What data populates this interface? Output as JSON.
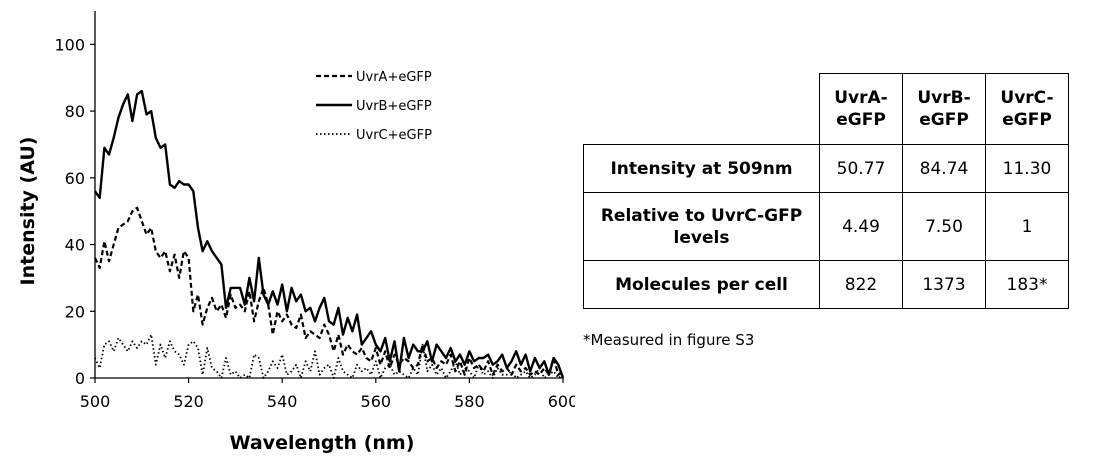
{
  "chart_data": {
    "type": "line",
    "xlabel": "Wavelength (nm)",
    "ylabel": "Intensity (AU)",
    "xlim": [
      500,
      600
    ],
    "ylim": [
      0,
      110
    ],
    "xticks": [
      500,
      520,
      540,
      560,
      580,
      600
    ],
    "yticks": [
      0,
      20,
      40,
      60,
      80,
      100
    ],
    "grid": false,
    "legend_position": "top-right",
    "series": [
      {
        "name": "UvrA+eGFP",
        "style": "dashed",
        "color": "#000000",
        "x": [
          500,
          501,
          502,
          503,
          504,
          505,
          506,
          507,
          508,
          509,
          510,
          511,
          512,
          513,
          514,
          515,
          516,
          517,
          518,
          519,
          520,
          521,
          522,
          523,
          524,
          525,
          526,
          527,
          528,
          529,
          530,
          531,
          532,
          533,
          534,
          535,
          536,
          537,
          538,
          539,
          540,
          541,
          542,
          543,
          544,
          545,
          546,
          547,
          548,
          549,
          550,
          551,
          552,
          553,
          554,
          555,
          556,
          557,
          558,
          559,
          560,
          561,
          562,
          563,
          564,
          565,
          566,
          567,
          568,
          569,
          570,
          571,
          572,
          573,
          574,
          575,
          576,
          577,
          578,
          579,
          580,
          581,
          582,
          583,
          584,
          585,
          586,
          587,
          588,
          589,
          590,
          591,
          592,
          593,
          594,
          595,
          596,
          597,
          598,
          599,
          600
        ],
        "values": [
          36,
          33,
          41,
          35,
          40,
          45,
          46,
          47,
          50,
          51,
          47,
          43,
          45,
          38,
          36,
          38,
          32,
          37,
          30,
          38,
          36,
          20,
          25,
          16,
          21,
          24,
          20,
          22,
          18,
          25,
          21,
          22,
          20,
          26,
          17,
          23,
          27,
          22,
          13,
          20,
          17,
          19,
          16,
          15,
          19,
          12,
          14,
          13,
          12,
          16,
          13,
          8,
          13,
          7,
          10,
          8,
          7,
          9,
          6,
          5,
          9,
          4,
          8,
          3,
          7,
          4,
          6,
          5,
          3,
          4,
          10,
          5,
          6,
          3,
          5,
          4,
          7,
          2,
          5,
          1,
          6,
          3,
          4,
          2,
          5,
          1,
          4,
          2,
          3,
          1,
          4,
          2,
          3,
          1,
          2,
          1,
          3,
          1,
          6,
          1,
          2
        ]
      },
      {
        "name": "UvrB+eGFP",
        "style": "solid",
        "color": "#000000",
        "x": [
          500,
          501,
          502,
          503,
          504,
          505,
          506,
          507,
          508,
          509,
          510,
          511,
          512,
          513,
          514,
          515,
          516,
          517,
          518,
          519,
          520,
          521,
          522,
          523,
          524,
          525,
          526,
          527,
          528,
          529,
          530,
          531,
          532,
          533,
          534,
          535,
          536,
          537,
          538,
          539,
          540,
          541,
          542,
          543,
          544,
          545,
          546,
          547,
          548,
          549,
          550,
          551,
          552,
          553,
          554,
          555,
          556,
          557,
          558,
          559,
          560,
          561,
          562,
          563,
          564,
          565,
          566,
          567,
          568,
          569,
          570,
          571,
          572,
          573,
          574,
          575,
          576,
          577,
          578,
          579,
          580,
          581,
          582,
          583,
          584,
          585,
          586,
          587,
          588,
          589,
          590,
          591,
          592,
          593,
          594,
          595,
          596,
          597,
          598,
          599,
          600
        ],
        "values": [
          56,
          54,
          69,
          67,
          72,
          78,
          82,
          85,
          77,
          85,
          86,
          79,
          80,
          72,
          69,
          70,
          58,
          57,
          59,
          58,
          58,
          56,
          45,
          38,
          41,
          38,
          36,
          34,
          21,
          27,
          27,
          27,
          22,
          30,
          23,
          36,
          25,
          22,
          26,
          22,
          28,
          20,
          27,
          23,
          25,
          20,
          21,
          17,
          21,
          24,
          17,
          16,
          21,
          13,
          18,
          14,
          19,
          10,
          12,
          14,
          10,
          8,
          12,
          5,
          11,
          2,
          12,
          6,
          10,
          8,
          8,
          11,
          5,
          10,
          8,
          6,
          9,
          5,
          7,
          4,
          8,
          5,
          6,
          6,
          7,
          4,
          5,
          7,
          3,
          5,
          8,
          4,
          7,
          2,
          6,
          3,
          5,
          1,
          6,
          4,
          0
        ]
      },
      {
        "name": "UvrC+eGFP",
        "style": "dotted",
        "color": "#000000",
        "x": [
          500,
          501,
          502,
          503,
          504,
          505,
          506,
          507,
          508,
          509,
          510,
          511,
          512,
          513,
          514,
          515,
          516,
          517,
          518,
          519,
          520,
          521,
          522,
          523,
          524,
          525,
          526,
          527,
          528,
          529,
          530,
          531,
          532,
          533,
          534,
          535,
          536,
          537,
          538,
          539,
          540,
          541,
          542,
          543,
          544,
          545,
          546,
          547,
          548,
          549,
          550,
          551,
          552,
          553,
          554,
          555,
          556,
          557,
          558,
          559,
          560,
          561,
          562,
          563,
          564,
          565,
          566,
          567,
          568,
          569,
          570,
          571,
          572,
          573,
          574,
          575,
          576,
          577,
          578,
          579,
          580,
          581,
          582,
          583,
          584,
          585,
          586,
          587,
          588,
          589,
          590,
          591,
          592,
          593,
          594,
          595,
          596,
          597,
          598,
          599,
          600
        ],
        "values": [
          6,
          3,
          10,
          11,
          8,
          12,
          10,
          8,
          11,
          9,
          11,
          10,
          13,
          4,
          10,
          6,
          11,
          8,
          7,
          4,
          10,
          11,
          9,
          1,
          9,
          3,
          2,
          0,
          6,
          1,
          2,
          0,
          1,
          0,
          7,
          6,
          0,
          2,
          5,
          3,
          7,
          1,
          2,
          4,
          0,
          5,
          2,
          8,
          1,
          3,
          4,
          0,
          6,
          2,
          1,
          0,
          4,
          2,
          3,
          1,
          5,
          0,
          3,
          4,
          1,
          2,
          1,
          0,
          3,
          1,
          10,
          2,
          4,
          1,
          3,
          0,
          2,
          5,
          1,
          3,
          2,
          0,
          4,
          1,
          2,
          0,
          3,
          1,
          1,
          2,
          0,
          1,
          2,
          0,
          1,
          3,
          0,
          1,
          2,
          0,
          1
        ]
      }
    ]
  },
  "table": {
    "columns": [
      [
        "UvrA-",
        "eGFP"
      ],
      [
        "UvrB-",
        "eGFP"
      ],
      [
        "UvrC-",
        "eGFP"
      ]
    ],
    "rows": [
      {
        "label": [
          "Intensity at 509nm"
        ],
        "values": [
          "50.77",
          "84.74",
          "11.30"
        ]
      },
      {
        "label": [
          "Relative to UvrC-GFP",
          "levels"
        ],
        "values": [
          "4.49",
          "7.50",
          "1"
        ]
      },
      {
        "label": [
          "Molecules per cell"
        ],
        "values": [
          "822",
          "1373",
          "183*"
        ]
      }
    ],
    "footnote": "*Measured in figure S3"
  }
}
